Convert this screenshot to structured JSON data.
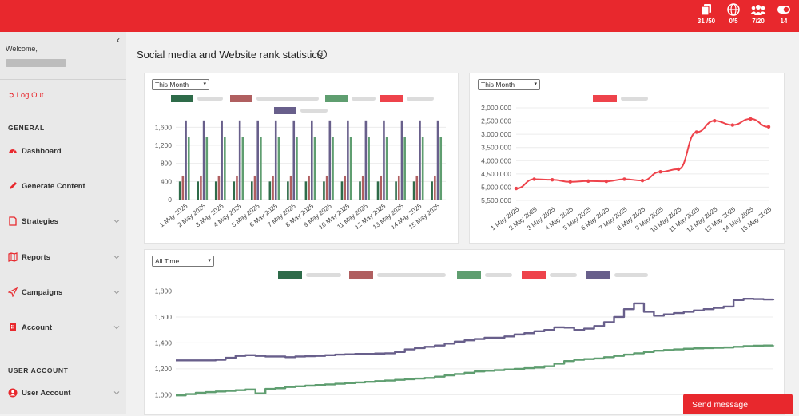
{
  "header": {
    "stats": [
      {
        "icon": "copy-icon",
        "value": "31 /50"
      },
      {
        "icon": "globe-icon",
        "value": "0/5"
      },
      {
        "icon": "users-icon",
        "value": "7/20"
      },
      {
        "icon": "toggle-icon",
        "value": "14"
      }
    ]
  },
  "sidebar": {
    "welcome": "Welcome,",
    "logout": "Log Out",
    "general_heading": "GENERAL",
    "items": [
      {
        "label": "Dashboard",
        "icon": "gauge-icon",
        "chevron": false
      },
      {
        "label": "Generate Content",
        "icon": "pencil-icon",
        "chevron": false
      },
      {
        "label": "Strategies",
        "icon": "document-icon",
        "chevron": true
      },
      {
        "label": "Reports",
        "icon": "map-icon",
        "chevron": true
      },
      {
        "label": "Campaigns",
        "icon": "paper-plane-icon",
        "chevron": true
      },
      {
        "label": "Account",
        "icon": "building-icon",
        "chevron": true
      }
    ],
    "user_heading": "USER ACCOUNT",
    "user_items": [
      {
        "label": "User Account",
        "icon": "user-circle-icon",
        "chevron": true
      }
    ]
  },
  "main": {
    "title": "Social media and Website rank statistics",
    "send_message": "Send message"
  },
  "colors": {
    "brand": "#e8282d",
    "series": [
      "#2e6b49",
      "#b05f60",
      "#5f9e70",
      "#ee434b",
      "#685f8b"
    ]
  },
  "chart_data": [
    {
      "type": "bar",
      "filter": "This Month",
      "categories": [
        "1 May 2025",
        "2 May 2025",
        "3 May 2025",
        "4 May 2025",
        "5 May 2025",
        "6 May 2025",
        "7 May 2025",
        "8 May 2025",
        "9 May 2025",
        "10 May 2025",
        "11 May 2025",
        "12 May 2025",
        "13 May 2025",
        "14 May 2025",
        "15 May 2025"
      ],
      "ylim": [
        0,
        1800
      ],
      "yticks": [
        "0",
        "400",
        "800",
        "1,200",
        "1,600"
      ],
      "series": [
        {
          "color": "#2e6b49",
          "values": [
            400,
            400,
            400,
            400,
            400,
            400,
            400,
            400,
            400,
            400,
            400,
            400,
            400,
            400,
            400
          ]
        },
        {
          "color": "#b05f60",
          "values": [
            530,
            530,
            530,
            530,
            530,
            530,
            530,
            530,
            530,
            530,
            530,
            530,
            530,
            530,
            530
          ]
        },
        {
          "color": "#685f8b",
          "values": [
            1750,
            1750,
            1750,
            1750,
            1750,
            1750,
            1750,
            1750,
            1750,
            1750,
            1750,
            1750,
            1750,
            1750,
            1750
          ]
        },
        {
          "color": "#5f9e70",
          "values": [
            1380,
            1380,
            1380,
            1380,
            1380,
            1380,
            1380,
            1380,
            1380,
            1380,
            1380,
            1380,
            1380,
            1380,
            1380
          ]
        }
      ]
    },
    {
      "type": "line",
      "filter": "This Month",
      "categories": [
        "1 May 2025",
        "2 May 2025",
        "3 May 2025",
        "4 May 2025",
        "5 May 2025",
        "6 May 2025",
        "7 May 2025",
        "8 May 2025",
        "9 May 2025",
        "10 May 2025",
        "11 May 2025",
        "12 May 2025",
        "13 May 2025",
        "14 May 2025",
        "15 May 2025"
      ],
      "ylim": [
        2000000,
        5500000
      ],
      "reversed": true,
      "yticks": [
        "2,000,000",
        "2,500,000",
        "3,000,000",
        "3,500,000",
        "4,000,000",
        "4,500,000",
        "5,000,000",
        "5,500,000"
      ],
      "series": [
        {
          "color": "#ee434b",
          "values": [
            5050000,
            4700000,
            4720000,
            4800000,
            4770000,
            4780000,
            4700000,
            4750000,
            4420000,
            4320000,
            2920000,
            2490000,
            2650000,
            2420000,
            2720000
          ]
        }
      ]
    },
    {
      "type": "line",
      "filter": "All Time",
      "ylim": [
        990,
        1840
      ],
      "yticks": [
        "1,000",
        "1,200",
        "1,400",
        "1,600",
        "1,800"
      ],
      "series": [
        {
          "color": "#685f8b",
          "values": [
            1265,
            1265,
            1265,
            1265,
            1270,
            1285,
            1300,
            1305,
            1300,
            1295,
            1295,
            1290,
            1295,
            1298,
            1300,
            1305,
            1310,
            1312,
            1315,
            1315,
            1318,
            1320,
            1330,
            1350,
            1360,
            1370,
            1380,
            1395,
            1410,
            1420,
            1430,
            1440,
            1440,
            1450,
            1465,
            1475,
            1490,
            1500,
            1520,
            1518,
            1500,
            1510,
            1530,
            1560,
            1600,
            1660,
            1705,
            1640,
            1610,
            1620,
            1630,
            1640,
            1650,
            1660,
            1670,
            1680,
            1730,
            1740,
            1738,
            1735,
            1740
          ]
        },
        {
          "color": "#5f9e70",
          "values": [
            995,
            1005,
            1015,
            1020,
            1025,
            1030,
            1035,
            1040,
            1010,
            1045,
            1050,
            1060,
            1065,
            1070,
            1075,
            1080,
            1085,
            1090,
            1095,
            1100,
            1105,
            1110,
            1115,
            1120,
            1125,
            1130,
            1140,
            1150,
            1160,
            1170,
            1180,
            1185,
            1190,
            1195,
            1200,
            1205,
            1210,
            1220,
            1240,
            1260,
            1270,
            1275,
            1280,
            1290,
            1300,
            1310,
            1320,
            1330,
            1340,
            1345,
            1350,
            1355,
            1358,
            1360,
            1362,
            1365,
            1370,
            1375,
            1378,
            1380,
            1382
          ]
        }
      ]
    }
  ]
}
